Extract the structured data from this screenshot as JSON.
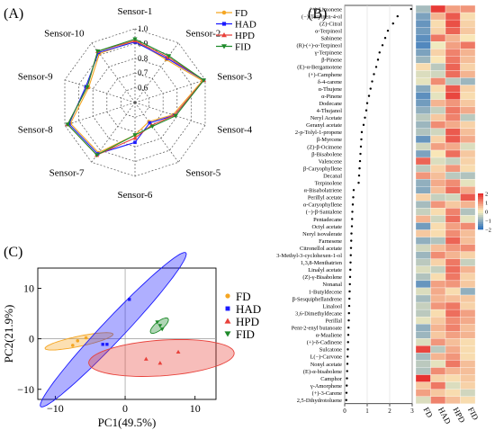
{
  "panel_labels": {
    "a": "(A)",
    "b": "(B)",
    "c": "(C)"
  },
  "colors": {
    "FD": "#f5a623",
    "HAD": "#1a1aff",
    "HPD": "#e8413a",
    "FID": "#1e8a2a"
  },
  "legend": [
    "FD",
    "HAD",
    "HPD",
    "FID"
  ],
  "chart_data": [
    {
      "type": "radar",
      "panel": "(A)",
      "axes": [
        "Sensor-1",
        "Sensor-2",
        "Sensor-3",
        "Sensor-4",
        "Sensor-5",
        "Sensor-6",
        "Sensor-7",
        "Sensor-8",
        "Sensor-9",
        "Sensor-10"
      ],
      "rlim": [
        0.5,
        1.0
      ],
      "rticks": [
        0.6,
        0.7,
        0.8,
        0.9,
        1.0
      ],
      "rtick_labels": [
        "0.6",
        "0.7",
        "0.8",
        "0.9",
        "1.0"
      ],
      "grid": true,
      "legend_position": "top-right",
      "series": [
        {
          "name": "FD",
          "marker": "circle",
          "values": [
            0.92,
            0.86,
            0.98,
            0.77,
            0.66,
            0.72,
            0.92,
            0.96,
            0.83,
            0.91
          ]
        },
        {
          "name": "HAD",
          "marker": "square",
          "values": [
            0.91,
            0.87,
            0.99,
            0.78,
            0.67,
            0.77,
            0.93,
            0.97,
            0.85,
            0.92
          ]
        },
        {
          "name": "HPD",
          "marker": "triangle-up",
          "values": [
            0.92,
            0.88,
            0.99,
            0.78,
            0.69,
            0.74,
            0.94,
            0.98,
            0.84,
            0.93
          ]
        },
        {
          "name": "FID",
          "marker": "triangle-down",
          "values": [
            0.93,
            0.89,
            0.99,
            0.79,
            0.7,
            0.72,
            0.94,
            0.98,
            0.84,
            0.93
          ]
        }
      ]
    },
    {
      "type": "dot+heatmap",
      "panel": "(B)",
      "compounds": [
        "(+)-Limonene",
        "(−)-Terpinen-4-ol",
        "(Z)-Citral",
        "α-Terpineol",
        "Sabinene",
        "(R)-(+)-α-Terpineol",
        "γ-Terpinene",
        "β-Pinene",
        "(E)-α-Bergamotene",
        "(+)-Camphene",
        "δ-4-carene",
        "α-Thujene",
        "α-Pinene",
        "Dodecane",
        "4-Thujanol",
        "Neryl Acetate",
        "Geranyl acetate",
        "2-p-Tolyl-1-propene",
        "β-Myrcene",
        "(Z)-β-Ocimene",
        "β-Bisabolene",
        "Valencene",
        "β-Caryophyllene",
        "Decanal",
        "Terpinolene",
        "α-Bisabolatriene",
        "Perillyl acetate",
        "α-Caryophyllene",
        "(−)-β-Santalene",
        "Pentadecane",
        "Octyl acetate",
        "Neryl isovalerate",
        "Farnesene",
        "Citronellol acetate",
        "3-Methyl-3-cyclohexen-1-ol",
        "1,3,8-Menthatrien",
        "Linalyl acetate",
        "(Z)-γ-Bisabolene",
        "Nonanal",
        "1-Butyldecene",
        "β-Sesquiphellandrene",
        "Linalool",
        "3,6-Dimethyldecane",
        "Perillal",
        "Pent-2-enyl butanoate",
        "α-Maaliene",
        "(+)-δ-Cadinene",
        "Sulcatone",
        "L(−)-Carvone",
        "Nonyl acetate",
        "(E)-α-bisabolene",
        "Camphor",
        "γ-Amorphene",
        "(+)-3-Carene",
        "2,5-Dihydrotoluene"
      ],
      "dot_values": [
        2.95,
        2.35,
        2.15,
        1.92,
        1.8,
        1.68,
        1.55,
        1.48,
        1.4,
        1.3,
        1.22,
        1.15,
        1.08,
        1.0,
        0.96,
        0.9,
        0.84,
        0.76,
        0.74,
        0.72,
        0.7,
        0.68,
        0.66,
        0.64,
        0.62,
        0.4,
        0.38,
        0.36,
        0.34,
        0.33,
        0.32,
        0.3,
        0.29,
        0.28,
        0.27,
        0.26,
        0.25,
        0.24,
        0.23,
        0.22,
        0.21,
        0.2,
        0.19,
        0.18,
        0.17,
        0.16,
        0.15,
        0.14,
        0.13,
        0.12,
        0.11,
        0.1,
        0.09,
        0.08,
        0.07
      ],
      "dot_xlim": [
        0,
        3
      ],
      "dot_xticks": [
        "0",
        "1",
        "2",
        "3"
      ],
      "heatmap_columns": [
        "FD",
        "HAD",
        "HPD",
        "FID"
      ],
      "heatmap_values": [
        [
          -0.8,
          1.8,
          0.8,
          0.9
        ],
        [
          -1.2,
          0.6,
          1.5,
          0.2
        ],
        [
          -1.4,
          0.2,
          1.6,
          0.3
        ],
        [
          -1.3,
          0.3,
          1.4,
          0.4
        ],
        [
          -1.5,
          1.2,
          0.6,
          0.1
        ],
        [
          -1.6,
          -0.1,
          0.8,
          1.2
        ],
        [
          -1.2,
          0.3,
          1.1,
          0.6
        ],
        [
          -0.9,
          0.1,
          1.2,
          0.5
        ],
        [
          0.2,
          -0.6,
          1.4,
          0.3
        ],
        [
          -0.3,
          -0.4,
          1.3,
          0.6
        ],
        [
          -0.2,
          1.0,
          -0.6,
          -0.9
        ],
        [
          -1.1,
          0.2,
          1.5,
          0.3
        ],
        [
          -1.5,
          -0.2,
          1.7,
          0.2
        ],
        [
          -1.3,
          0.6,
          0.9,
          0.4
        ],
        [
          -1.0,
          -0.5,
          1.2,
          0.7
        ],
        [
          -0.6,
          0.4,
          1.1,
          -0.6
        ],
        [
          -0.9,
          1.0,
          0.7,
          0.3
        ],
        [
          -0.7,
          -0.4,
          1.5,
          0.5
        ],
        [
          -1.4,
          0.3,
          1.5,
          0.7
        ],
        [
          -0.4,
          0.8,
          0.7,
          -0.3
        ],
        [
          -1.2,
          0.1,
          1.3,
          0.4
        ],
        [
          1.4,
          -0.3,
          -0.5,
          0.3
        ],
        [
          -0.6,
          0.3,
          0.9,
          0.2
        ],
        [
          0.9,
          0.5,
          -0.6,
          -0.7
        ],
        [
          -1.0,
          0.7,
          1.0,
          -0.2
        ],
        [
          -1.1,
          0.5,
          1.3,
          0.7
        ],
        [
          0.3,
          -0.5,
          -0.4,
          1.5
        ],
        [
          -0.8,
          0.9,
          0.4,
          0.6
        ],
        [
          -0.5,
          0.2,
          1.1,
          -0.7
        ],
        [
          0.6,
          -0.4,
          1.3,
          -0.2
        ],
        [
          -1.3,
          0.2,
          0.8,
          1.0
        ],
        [
          0.4,
          0.2,
          1.0,
          0.5
        ],
        [
          -1.0,
          -0.7,
          1.4,
          0.5
        ],
        [
          -0.4,
          0.5,
          0.9,
          1.0
        ],
        [
          -0.9,
          1.0,
          0.6,
          0.3
        ],
        [
          -0.6,
          0.3,
          1.2,
          -0.5
        ],
        [
          -0.3,
          -0.5,
          1.3,
          0.6
        ],
        [
          -0.7,
          0.2,
          1.2,
          0.3
        ],
        [
          -1.4,
          0.8,
          0.9,
          0.4
        ],
        [
          -0.3,
          0.7,
          0.2,
          -1.0
        ],
        [
          -0.8,
          0.6,
          0.5,
          0.4
        ],
        [
          -0.5,
          0.9,
          1.2,
          0.3
        ],
        [
          -0.6,
          0.2,
          1.3,
          0.8
        ],
        [
          -0.2,
          0.4,
          1.0,
          0.7
        ],
        [
          -1.0,
          0.6,
          1.1,
          0.5
        ],
        [
          -0.9,
          0.4,
          0.8,
          0.6
        ],
        [
          -0.3,
          0.9,
          0.5,
          0.2
        ],
        [
          1.7,
          -0.6,
          0.7,
          0.2
        ],
        [
          -0.8,
          0.6,
          0.9,
          0.2
        ],
        [
          -0.6,
          -0.2,
          1.2,
          0.5
        ],
        [
          -0.7,
          1.0,
          0.6,
          0.5
        ],
        [
          1.9,
          0.3,
          0.2,
          0.4
        ],
        [
          0.4,
          1.2,
          -0.3,
          0.3
        ],
        [
          0.8,
          0.4,
          0.2,
          -0.4
        ],
        [
          -0.3,
          1.1,
          0.5,
          0.2
        ]
      ],
      "colorbar_ticks": [
        "2",
        "1",
        "0",
        "−1",
        "−2"
      ],
      "colorbar_range": [
        -2,
        2
      ]
    },
    {
      "type": "scatter",
      "panel": "(C)",
      "xlabel": "PC1(49.5%)",
      "ylabel": "PC2(21.9%)",
      "xlim": [
        -12.5,
        13
      ],
      "ylim": [
        -12,
        14
      ],
      "xticks": [
        -10,
        0,
        10
      ],
      "yticks": [
        -10,
        0,
        10
      ],
      "xtick_labels": [
        "−10",
        "0",
        "10"
      ],
      "ytick_labels": [
        "−10",
        "0",
        "10"
      ],
      "legend_position": "right",
      "series": [
        {
          "name": "FD",
          "marker": "circle",
          "points": [
            [
              -7.5,
              -1.3
            ],
            [
              -6.8,
              -0.4
            ],
            [
              -5.6,
              0.2
            ]
          ],
          "ellipse": {
            "cx": -6.6,
            "cy": -0.5,
            "rx": 3.8,
            "ry": 0.95,
            "angle": 23
          }
        },
        {
          "name": "HAD",
          "marker": "square",
          "points": [
            [
              -3.2,
              -1.1
            ],
            [
              -2.6,
              -1.1
            ],
            [
              0.6,
              7.8
            ]
          ],
          "ellipse": {
            "cx": -1.7,
            "cy": 1.8,
            "rx": 17.0,
            "ry": 1.4,
            "angle": 64
          }
        },
        {
          "name": "HPD",
          "marker": "triangle",
          "points": [
            [
              3.0,
              -4.0
            ],
            [
              5.0,
              -4.8
            ],
            [
              7.6,
              -2.6
            ]
          ],
          "ellipse": {
            "cx": 5.2,
            "cy": -3.8,
            "rx": 7.6,
            "ry": 3.5,
            "angle": 9
          }
        },
        {
          "name": "FID",
          "marker": "triangle-down",
          "points": [
            [
              4.6,
              3.3
            ],
            [
              5.0,
              2.6
            ],
            [
              5.3,
              1.9
            ]
          ],
          "ellipse": {
            "cx": 4.9,
            "cy": 2.6,
            "rx": 1.7,
            "ry": 0.55,
            "angle": 62
          }
        }
      ]
    }
  ]
}
